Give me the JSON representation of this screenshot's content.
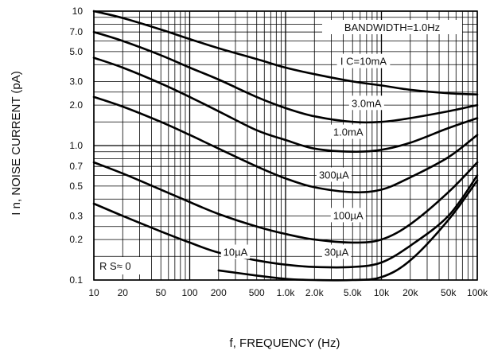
{
  "chart_data": {
    "type": "line",
    "xlabel": "f, FREQUENCY (Hz)",
    "ylabel": "I n, NOISE CURRENT (pA)",
    "xscale": "log",
    "yscale": "log",
    "xlim": [
      10,
      100000
    ],
    "ylim": [
      0.1,
      10
    ],
    "grid": true,
    "x_ticks": [
      {
        "v": 10,
        "label": "10"
      },
      {
        "v": 20,
        "label": "20"
      },
      {
        "v": 50,
        "label": "50"
      },
      {
        "v": 100,
        "label": "100"
      },
      {
        "v": 200,
        "label": "200"
      },
      {
        "v": 500,
        "label": "500"
      },
      {
        "v": 1000,
        "label": "1.0k"
      },
      {
        "v": 2000,
        "label": "2.0k"
      },
      {
        "v": 5000,
        "label": "5.0k"
      },
      {
        "v": 10000,
        "label": "10k"
      },
      {
        "v": 20000,
        "label": "20k"
      },
      {
        "v": 50000,
        "label": "50k"
      },
      {
        "v": 100000,
        "label": "100k"
      }
    ],
    "y_ticks": [
      {
        "v": 0.1,
        "label": "0.1"
      },
      {
        "v": 0.2,
        "label": "0.2"
      },
      {
        "v": 0.3,
        "label": "0.3"
      },
      {
        "v": 0.5,
        "label": "0.5"
      },
      {
        "v": 0.7,
        "label": "0.7"
      },
      {
        "v": 1.0,
        "label": "1.0"
      },
      {
        "v": 2.0,
        "label": "2.0"
      },
      {
        "v": 3.0,
        "label": "3.0"
      },
      {
        "v": 5.0,
        "label": "5.0"
      },
      {
        "v": 7.0,
        "label": "7.0"
      },
      {
        "v": 10,
        "label": "10"
      }
    ],
    "annotations": {
      "bandwidth": "BANDWIDTH=1.0Hz",
      "rs": "R S≈ 0"
    },
    "series": [
      {
        "name": "I C=10mA",
        "label_at": [
          6500,
          4.2
        ],
        "x": [
          10,
          20,
          50,
          100,
          200,
          500,
          1000,
          2000,
          5000,
          10000,
          20000,
          50000,
          100000
        ],
        "y": [
          10.0,
          8.9,
          7.3,
          6.2,
          5.3,
          4.4,
          3.8,
          3.4,
          3.0,
          2.8,
          2.6,
          2.45,
          2.4
        ]
      },
      {
        "name": "3.0mA",
        "label_at": [
          7000,
          2.05
        ],
        "x": [
          10,
          20,
          50,
          100,
          200,
          500,
          1000,
          2000,
          5000,
          10000,
          20000,
          50000,
          100000
        ],
        "y": [
          7.0,
          6.0,
          4.7,
          3.8,
          3.1,
          2.3,
          1.9,
          1.65,
          1.5,
          1.5,
          1.6,
          1.8,
          2.0
        ]
      },
      {
        "name": "1.0mA",
        "label_at": [
          4500,
          1.25
        ],
        "x": [
          10,
          20,
          50,
          100,
          200,
          500,
          1000,
          2000,
          5000,
          10000,
          20000,
          50000,
          100000
        ],
        "y": [
          4.5,
          3.8,
          2.9,
          2.3,
          1.8,
          1.3,
          1.1,
          0.95,
          0.9,
          0.93,
          1.05,
          1.35,
          1.6
        ]
      },
      {
        "name": "300µA",
        "label_at": [
          3200,
          0.6
        ],
        "x": [
          10,
          20,
          50,
          100,
          200,
          500,
          1000,
          2000,
          5000,
          10000,
          20000,
          50000,
          100000
        ],
        "y": [
          2.3,
          1.95,
          1.5,
          1.2,
          0.95,
          0.7,
          0.57,
          0.49,
          0.45,
          0.47,
          0.58,
          0.82,
          1.2
        ]
      },
      {
        "name": "100µA",
        "label_at": [
          4500,
          0.3
        ],
        "x": [
          10,
          20,
          50,
          100,
          200,
          500,
          1000,
          2000,
          5000,
          10000,
          20000,
          50000,
          100000
        ],
        "y": [
          0.75,
          0.62,
          0.47,
          0.38,
          0.31,
          0.25,
          0.22,
          0.2,
          0.19,
          0.2,
          0.26,
          0.45,
          0.75
        ]
      },
      {
        "name": "30µA",
        "label_at": [
          3400,
          0.16
        ],
        "x": [
          10,
          20,
          50,
          100,
          200,
          500,
          1000,
          2000,
          5000,
          10000,
          20000,
          50000,
          100000
        ],
        "y": [
          0.37,
          0.3,
          0.23,
          0.19,
          0.16,
          0.14,
          0.13,
          0.125,
          0.125,
          0.135,
          0.18,
          0.3,
          0.6
        ]
      },
      {
        "name": "10µA",
        "label_at": [
          300,
          0.16
        ],
        "x": [
          200,
          500,
          1000,
          2000,
          5000,
          10000,
          20000,
          50000,
          100000
        ],
        "y": [
          0.118,
          0.108,
          0.102,
          0.1,
          0.1,
          0.105,
          0.14,
          0.28,
          0.55
        ]
      }
    ]
  }
}
